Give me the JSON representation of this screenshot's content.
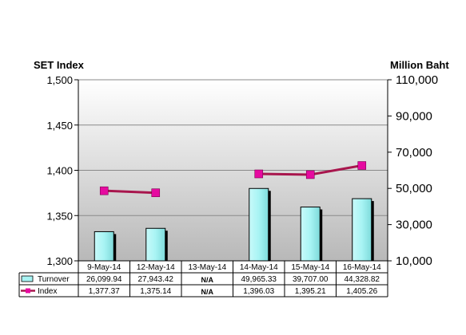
{
  "chart_data": {
    "type": "bar",
    "left_axis_title": "SET Index",
    "right_axis_title": "Million Baht",
    "categories": [
      "9-May-14",
      "12-May-14",
      "13-May-14",
      "14-May-14",
      "15-May-14",
      "16-May-14"
    ],
    "series": [
      {
        "name": "Turnover",
        "type": "bar",
        "axis": "right",
        "values": [
          26099.94,
          27943.42,
          null,
          49965.33,
          39707.0,
          44328.82
        ],
        "labels": [
          "26,099.94",
          "27,943.42",
          "N/A",
          "49,965.33",
          "39,707.00",
          "44,328.82"
        ],
        "color": "#a8f4f4"
      },
      {
        "name": "Index",
        "type": "line",
        "axis": "left",
        "values": [
          1377.37,
          1375.14,
          null,
          1396.03,
          1395.21,
          1405.26
        ],
        "labels": [
          "1,377.37",
          "1,375.14",
          "N/A",
          "1,396.03",
          "1,395.21",
          "1,405.26"
        ],
        "color": "#a8164d",
        "marker_color": "#e60aa0"
      }
    ],
    "left_ylim": [
      1300,
      1500
    ],
    "left_ticks": [
      "1,300",
      "1,350",
      "1,400",
      "1,450",
      "1,500"
    ],
    "right_ylim": [
      10000,
      110000
    ],
    "right_ticks": [
      "10,000",
      "30,000",
      "50,000",
      "70,000",
      "90,000",
      "110,000"
    ],
    "grid": true,
    "legend": "data-table"
  }
}
